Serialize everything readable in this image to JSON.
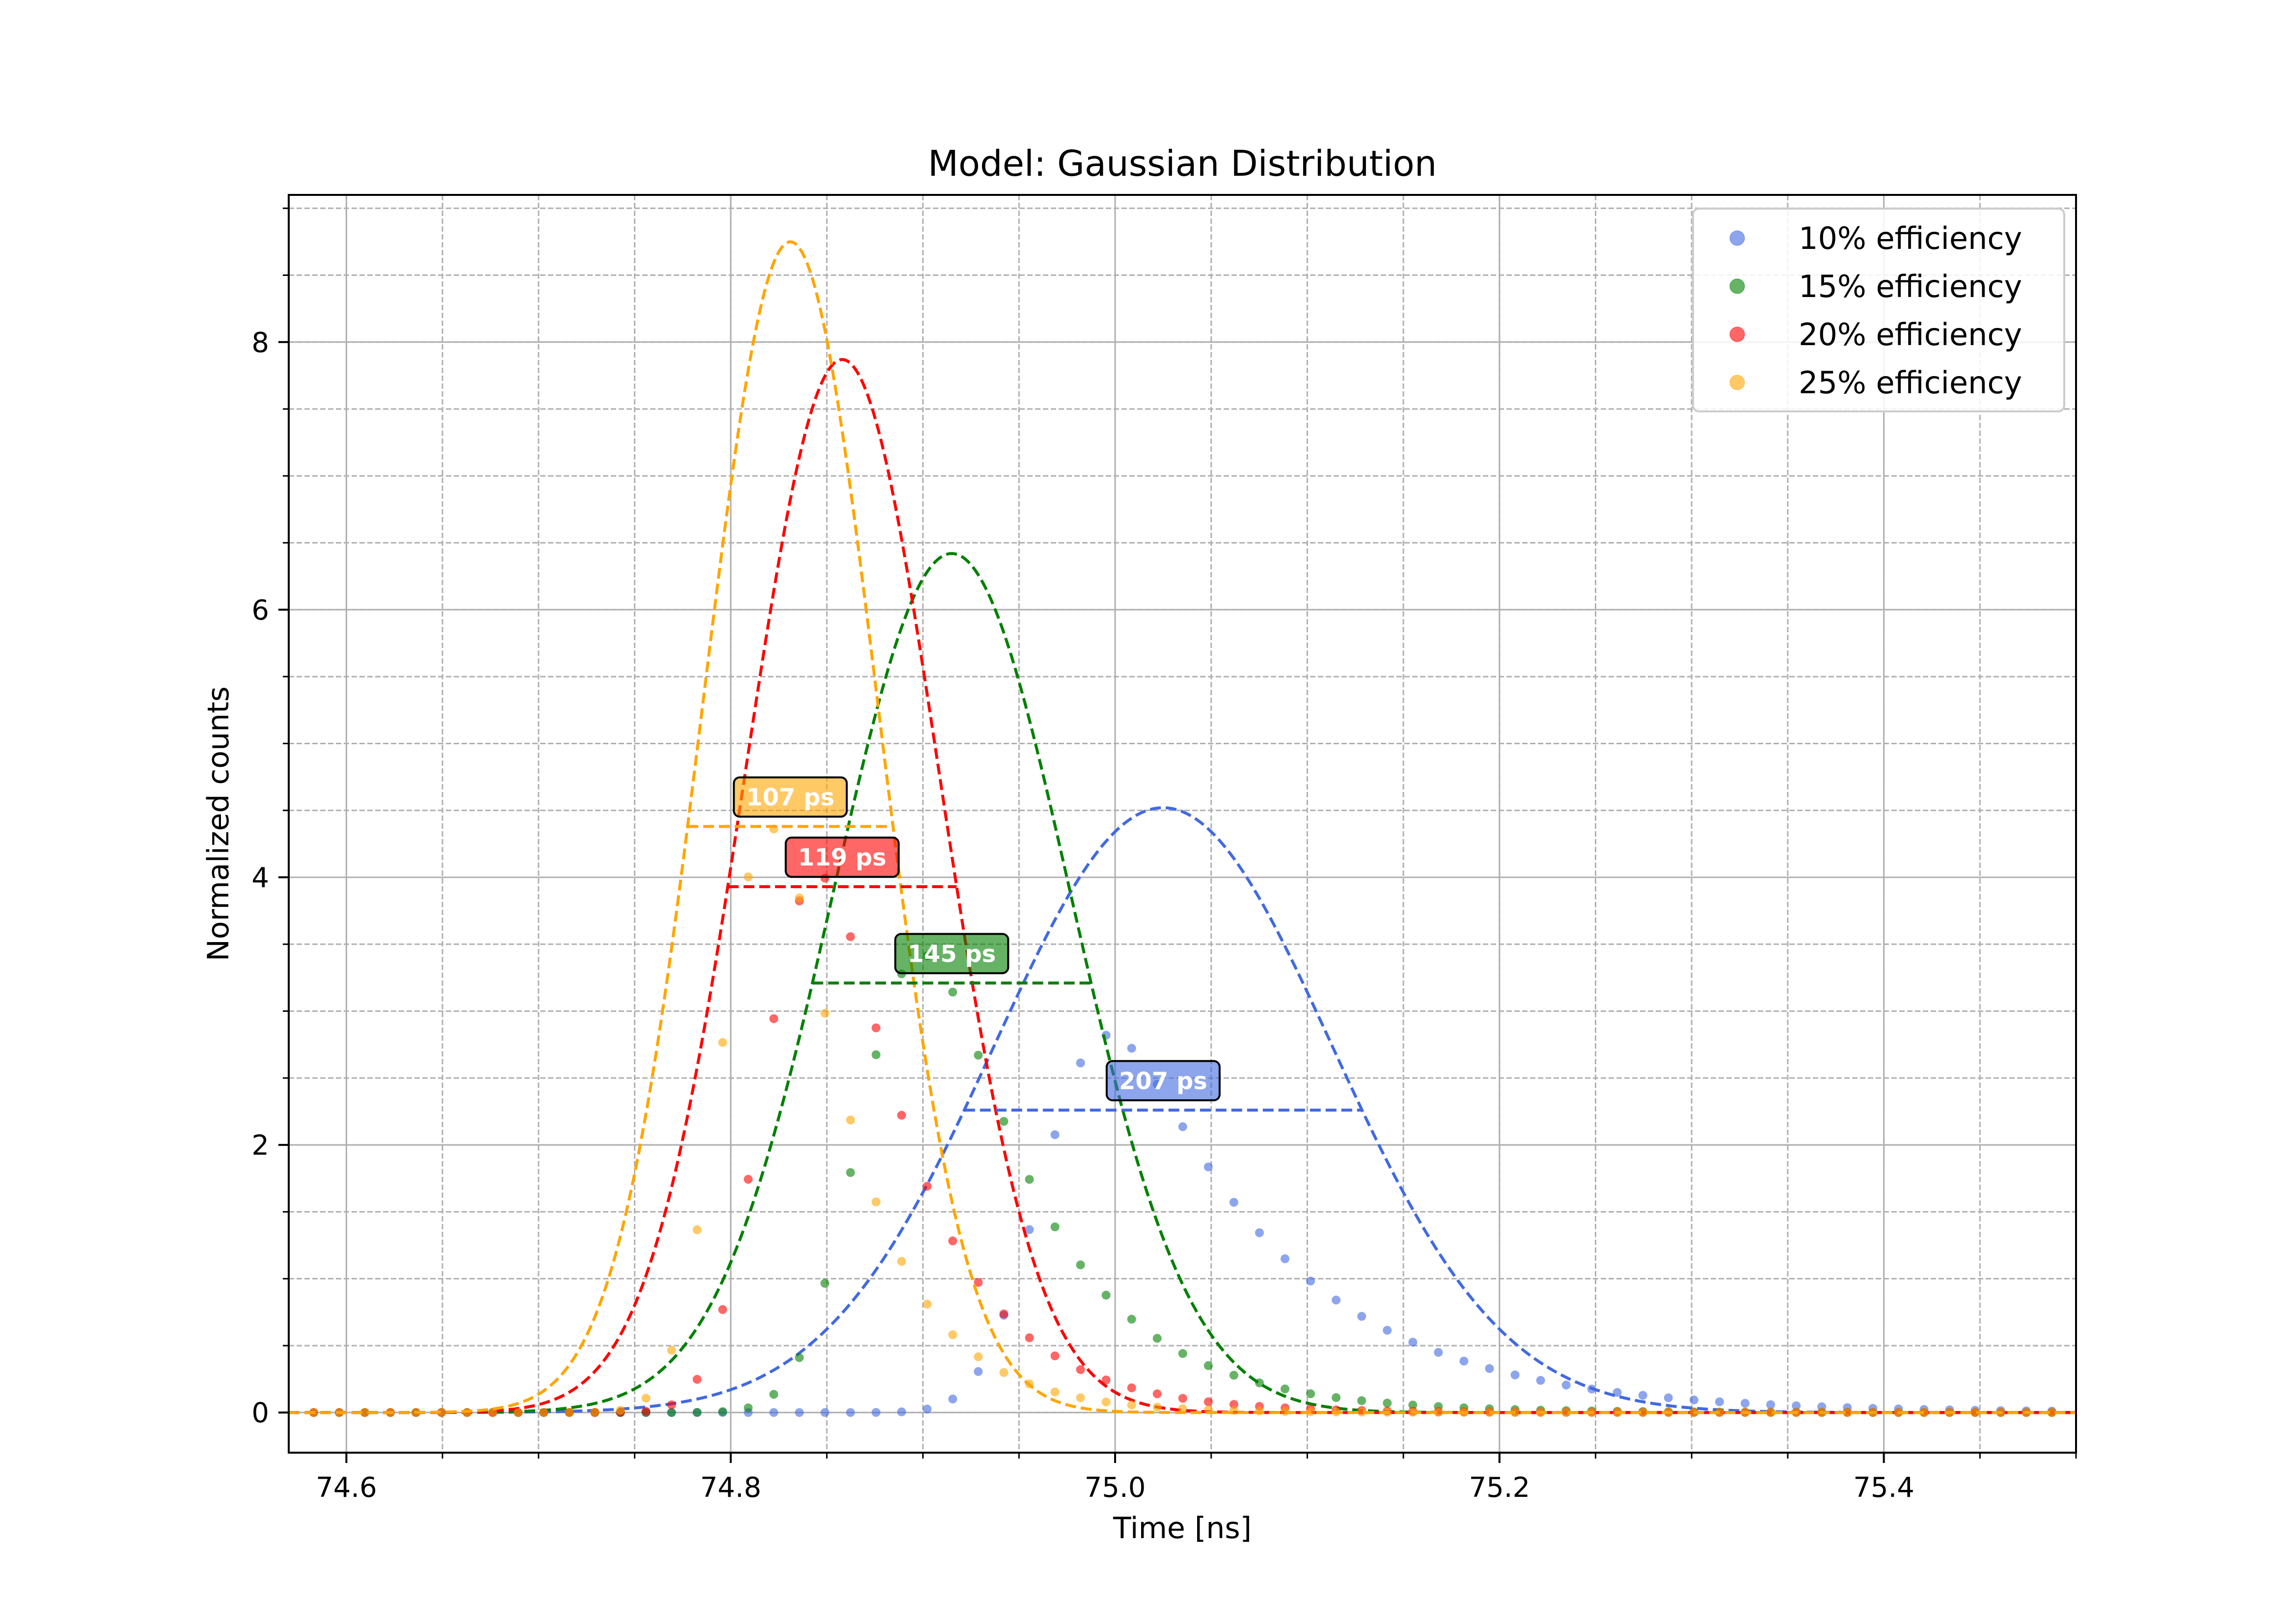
{
  "chart_data": {
    "type": "scatter",
    "title": "Model: Gaussian Distribution",
    "xlabel": "Time [ns]",
    "ylabel": "Normalized counts",
    "xlim": [
      74.57,
      75.5
    ],
    "ylim": [
      -0.3,
      9.1
    ],
    "x_ticks": [
      74.6,
      74.8,
      75.0,
      75.2,
      75.4
    ],
    "x_tick_labels": [
      "74.6",
      "74.8",
      "75.0",
      "75.2",
      "75.4"
    ],
    "y_ticks": [
      0,
      2,
      4,
      6,
      8
    ],
    "y_tick_labels": [
      "0",
      "2",
      "4",
      "6",
      "8"
    ],
    "x_minor_step": 0.05,
    "y_minor_step": 0.5,
    "grid": true,
    "legend_position": "top-right",
    "sample_step_ns": 0.0133,
    "series": [
      {
        "name": "10% efficiency",
        "color": "#4169e1",
        "fit": {
          "center": 75.025,
          "amplitude": 4.52,
          "fwhm_ns": 0.207,
          "fwhm_label": "207 ps",
          "fwhm_level": 2.26
        },
        "data_model": {
          "kind": "exp_gaussian",
          "mu": 74.965,
          "sigma": 0.025,
          "tau": 0.085,
          "scale": 4.7
        }
      },
      {
        "name": "15% efficiency",
        "color": "#008000",
        "fit": {
          "center": 74.915,
          "amplitude": 6.42,
          "fwhm_ns": 0.145,
          "fwhm_label": "145 ps",
          "fwhm_level": 3.21
        },
        "data_model": {
          "kind": "exp_gaussian",
          "mu": 74.872,
          "sigma": 0.025,
          "tau": 0.058,
          "scale": 6.7
        }
      },
      {
        "name": "20% efficiency",
        "color": "#ff0000",
        "fit": {
          "center": 74.858,
          "amplitude": 7.87,
          "fwhm_ns": 0.119,
          "fwhm_label": "119 ps",
          "fwhm_level": 3.93
        },
        "data_model": {
          "kind": "exp_gaussian",
          "mu": 74.822,
          "sigma": 0.022,
          "tau": 0.048,
          "scale": 8.1
        }
      },
      {
        "name": "25% efficiency",
        "color": "#ffa500",
        "fit": {
          "center": 74.831,
          "amplitude": 8.75,
          "fwhm_ns": 0.107,
          "fwhm_label": "107 ps",
          "fwhm_level": 4.38
        },
        "data_model": {
          "kind": "exp_gaussian",
          "mu": 74.8,
          "sigma": 0.02,
          "tau": 0.04,
          "scale": 9.2
        }
      }
    ]
  }
}
